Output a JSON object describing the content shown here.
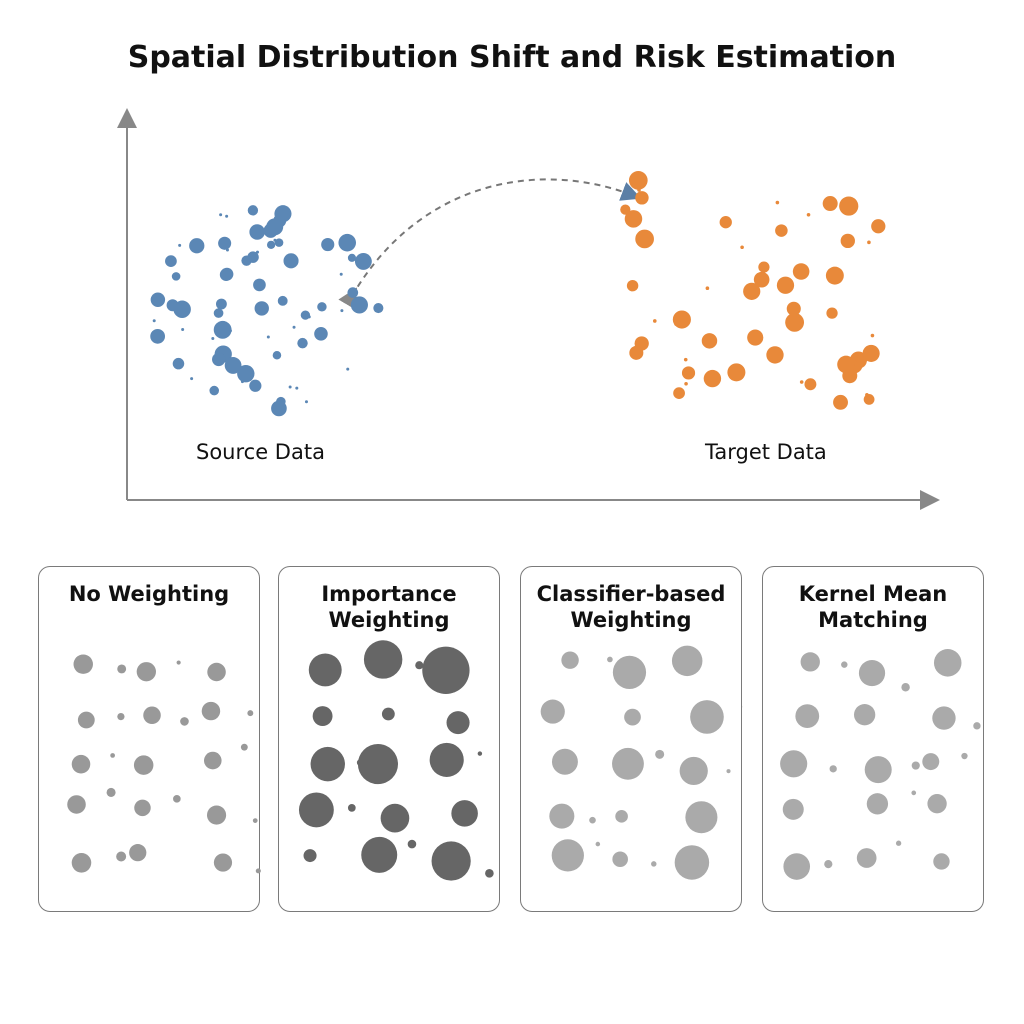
{
  "header": {
    "title": "Spatial Distribution Shift and Risk Estimation"
  },
  "plot": {
    "source_label": "Source Data",
    "target_label": "Target Data"
  },
  "panels": [
    {
      "title": "No Weighting"
    },
    {
      "title": "Importance Weighting"
    },
    {
      "title": "Classifier-based Weighting"
    },
    {
      "title": "Kernel Mean Matching"
    }
  ]
}
